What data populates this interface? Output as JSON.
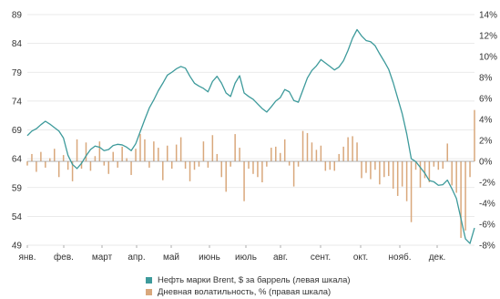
{
  "chart_data": {
    "type": "line",
    "title": "",
    "x_labels": [
      "янв.",
      "фев.",
      "март",
      "апр.",
      "май",
      "июнь",
      "июль",
      "авг.",
      "сент.",
      "окт.",
      "нояб.",
      "дек."
    ],
    "left_axis": {
      "ticks": [
        49,
        54,
        59,
        64,
        69,
        74,
        79,
        84,
        89
      ],
      "ylim": [
        49,
        89
      ]
    },
    "right_axis": {
      "ticks": [
        "-8%",
        "-6%",
        "-4%",
        "-2%",
        "0%",
        "2%",
        "4%",
        "6%",
        "8%",
        "10%",
        "12%",
        "14%"
      ],
      "ylim": [
        -8,
        14
      ]
    },
    "grid": "horizontal",
    "legend_position": "bottom",
    "series": [
      {
        "name": "Нефть марки Brent, $ за баррель (левая шкала)",
        "axis": "left",
        "type": "line",
        "color": "#3d9a9b",
        "values": [
          68.0,
          68.8,
          69.2,
          69.9,
          70.5,
          70.0,
          69.4,
          68.8,
          67.6,
          64.6,
          63.0,
          62.3,
          63.2,
          64.5,
          65.6,
          66.2,
          66.0,
          65.4,
          65.6,
          66.3,
          66.5,
          66.4,
          66.0,
          65.4,
          66.6,
          68.7,
          70.8,
          72.8,
          74.2,
          75.8,
          77.1,
          78.5,
          79.0,
          79.6,
          80.0,
          79.7,
          78.3,
          77.1,
          76.6,
          76.2,
          75.6,
          77.4,
          78.3,
          77.1,
          75.4,
          74.8,
          77.1,
          78.4,
          75.4,
          74.8,
          74.3,
          73.5,
          72.7,
          72.1,
          73.0,
          74.0,
          74.6,
          76.0,
          75.6,
          74.1,
          73.8,
          75.9,
          78.0,
          79.3,
          80.1,
          81.2,
          80.6,
          80.0,
          79.4,
          79.9,
          81.0,
          82.8,
          84.9,
          86.4,
          85.3,
          84.5,
          84.3,
          83.6,
          82.2,
          80.9,
          79.5,
          77.2,
          74.5,
          71.8,
          68.3,
          64.0,
          63.5,
          62.5,
          61.5,
          60.2,
          60.0,
          59.4,
          59.5,
          60.3,
          58.8,
          57.1,
          53.6,
          50.1,
          49.3,
          52.0
        ]
      },
      {
        "name": "Дневная волатильность, % (правая шкала)",
        "axis": "right",
        "type": "bar",
        "color": "#d9a87c",
        "values": [
          -0.4,
          0.7,
          -1.0,
          0.9,
          -0.6,
          0.3,
          1.2,
          -1.5,
          0.6,
          -0.8,
          -1.9,
          2.1,
          -0.7,
          1.8,
          -0.9,
          0.5,
          1.9,
          -0.4,
          -1.2,
          0.9,
          -0.6,
          1.4,
          0.3,
          -1.3,
          1.2,
          2.6,
          2.1,
          -0.6,
          1.9,
          1.3,
          -1.8,
          1.5,
          -0.7,
          1.6,
          2.3,
          -0.7,
          -1.9,
          -0.8,
          -0.5,
          1.9,
          -0.6,
          2.5,
          0.7,
          -1.5,
          -2.9,
          -0.5,
          2.6,
          1.3,
          -3.8,
          -0.7,
          -1.2,
          -1.5,
          -2.0,
          -0.5,
          1.3,
          1.4,
          0.8,
          2.1,
          -0.4,
          -2.4,
          -0.5,
          2.9,
          2.7,
          1.8,
          1.1,
          1.5,
          -0.9,
          -0.8,
          -0.9,
          0.7,
          1.4,
          2.3,
          2.4,
          1.8,
          -1.6,
          -1.1,
          -1.7,
          -0.8,
          -2.2,
          -1.5,
          -1.4,
          -2.6,
          -3.3,
          -2.4,
          -3.8,
          -5.8,
          -0.8,
          -2.5,
          -1.6,
          -2.0,
          -0.5,
          -0.8,
          -0.7,
          1.7,
          -2.3,
          -3.0,
          -7.3,
          -6.6,
          -1.5,
          4.9
        ]
      }
    ]
  }
}
